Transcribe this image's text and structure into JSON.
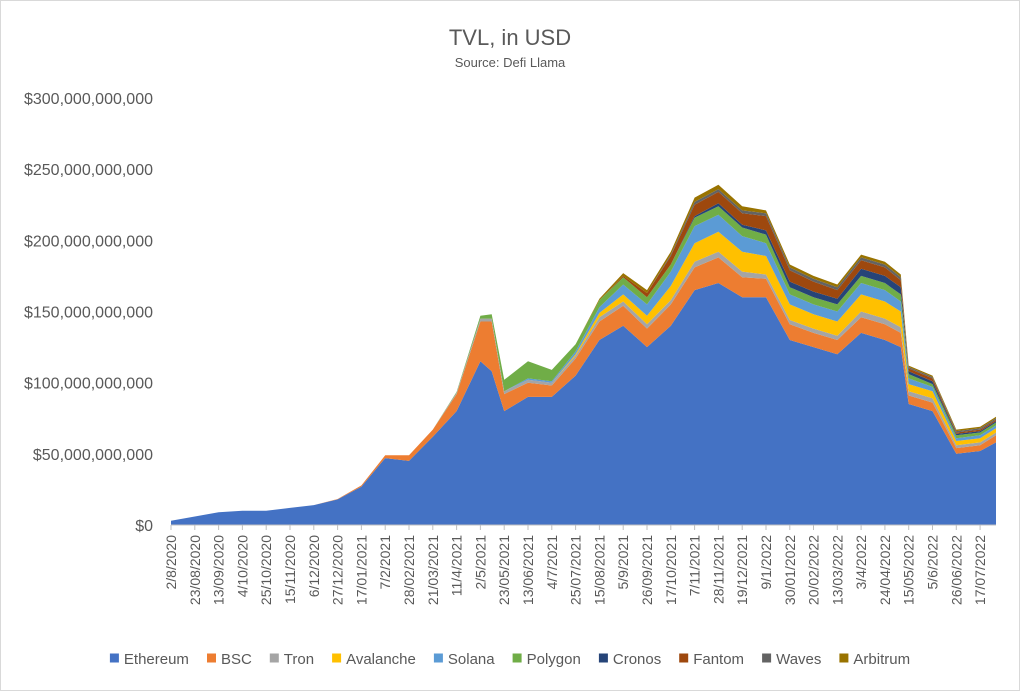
{
  "chart_data": {
    "type": "area",
    "stacked": true,
    "title": "TVL, in USD",
    "subtitle": "Source: Defi Llama",
    "xlabel": "",
    "ylabel": "",
    "ylim": [
      0,
      300000000000
    ],
    "y_ticks": [
      0,
      50000000000,
      100000000000,
      150000000000,
      200000000000,
      250000000000,
      300000000000
    ],
    "y_tick_labels": [
      "$0",
      "$50,000,000,000",
      "$100,000,000,000",
      "$150,000,000,000",
      "$200,000,000,000",
      "$250,000,000,000",
      "$300,000,000,000"
    ],
    "x_tick_labels": [
      "2/8/2020",
      "23/08/2020",
      "13/09/2020",
      "4/10/2020",
      "25/10/2020",
      "15/11/2020",
      "6/12/2020",
      "27/12/2020",
      "17/01/2021",
      "7/2/2021",
      "28/02/2021",
      "21/03/2021",
      "11/4/2021",
      "2/5/2021",
      "23/05/2021",
      "13/06/2021",
      "4/7/2021",
      "25/07/2021",
      "15/08/2021",
      "5/9/2021",
      "26/09/2021",
      "17/10/2021",
      "7/11/2021",
      "28/11/2021",
      "19/12/2021",
      "9/1/2022",
      "30/01/2022",
      "20/02/2022",
      "13/03/2022",
      "3/4/2022",
      "24/04/2022",
      "15/05/2022",
      "5/6/2022",
      "26/06/2022",
      "17/07/2022"
    ],
    "x_points": [
      "2/8/2020",
      "23/08/2020",
      "13/09/2020",
      "4/10/2020",
      "25/10/2020",
      "15/11/2020",
      "6/12/2020",
      "27/12/2020",
      "17/01/2021",
      "7/2/2021",
      "28/02/2021",
      "21/03/2021",
      "11/4/2021",
      "2/5/2021",
      "12/5/2021",
      "23/05/2021",
      "13/06/2021",
      "4/7/2021",
      "25/07/2021",
      "15/08/2021",
      "5/9/2021",
      "26/09/2021",
      "17/10/2021",
      "7/11/2021",
      "28/11/2021",
      "19/12/2021",
      "9/1/2022",
      "30/01/2022",
      "20/02/2022",
      "13/03/2022",
      "3/4/2022",
      "24/04/2022",
      "8/5/2022",
      "15/05/2022",
      "5/6/2022",
      "26/06/2022",
      "17/07/2022",
      "31/07/2022"
    ],
    "series": [
      {
        "name": "Ethereum",
        "color": "#4472c4",
        "values": [
          3,
          6,
          9,
          10,
          10,
          12,
          14,
          18,
          27,
          47,
          45,
          62,
          80,
          115,
          108,
          80,
          90,
          90,
          105,
          130,
          140,
          125,
          140,
          165,
          170,
          160,
          160,
          130,
          125,
          120,
          135,
          130,
          125,
          85,
          80,
          50,
          52,
          58
        ]
      },
      {
        "name": "BSC",
        "color": "#ed7d31",
        "values": [
          0,
          0,
          0,
          0,
          0,
          0,
          0,
          0.3,
          0.8,
          2,
          4,
          5,
          12,
          28,
          35,
          12,
          10,
          8,
          12,
          13,
          14,
          13,
          15,
          16,
          18,
          14,
          13,
          11,
          10,
          10,
          11,
          11,
          10,
          6,
          6,
          4,
          4,
          5
        ]
      },
      {
        "name": "Tron",
        "color": "#a5a5a5",
        "values": [
          0,
          0,
          0,
          0,
          0,
          0,
          0,
          0,
          0,
          0,
          0,
          0,
          1,
          2,
          2,
          2,
          2,
          2,
          2,
          3,
          3,
          3,
          3,
          4,
          4,
          4,
          3,
          3,
          3,
          3,
          4,
          4,
          4,
          3,
          3,
          2,
          2,
          2
        ]
      },
      {
        "name": "Avalanche",
        "color": "#ffc000",
        "values": [
          0,
          0,
          0,
          0,
          0,
          0,
          0,
          0,
          0,
          0,
          0,
          0,
          0,
          0,
          0,
          0,
          0,
          0,
          1,
          3,
          5,
          6,
          10,
          13,
          14,
          14,
          13,
          11,
          10,
          10,
          12,
          12,
          11,
          5,
          5,
          3,
          3,
          3
        ]
      },
      {
        "name": "Solana",
        "color": "#5b9bd5",
        "values": [
          0,
          0,
          0,
          0,
          0,
          0,
          0,
          0,
          0,
          0,
          0,
          0,
          0,
          0,
          0,
          0,
          1,
          1,
          2,
          4,
          7,
          8,
          10,
          12,
          12,
          11,
          9,
          7,
          7,
          7,
          8,
          8,
          7,
          4,
          3,
          2,
          2,
          2
        ]
      },
      {
        "name": "Polygon",
        "color": "#70ad47",
        "values": [
          0,
          0,
          0,
          0,
          0,
          0,
          0,
          0,
          0,
          0,
          0,
          0,
          0.5,
          2,
          3,
          8,
          12,
          8,
          5,
          5,
          5,
          5,
          5,
          6,
          6,
          6,
          6,
          5,
          5,
          5,
          5,
          5,
          5,
          3,
          2,
          2,
          2,
          2
        ]
      },
      {
        "name": "Cronos",
        "color": "#264478",
        "values": [
          0,
          0,
          0,
          0,
          0,
          0,
          0,
          0,
          0,
          0,
          0,
          0,
          0,
          0,
          0,
          0,
          0,
          0,
          0,
          0,
          0,
          0,
          0,
          1,
          2,
          2,
          3,
          4,
          4,
          4,
          5,
          5,
          5,
          2,
          2,
          1,
          1,
          1
        ]
      },
      {
        "name": "Fantom",
        "color": "#9e480e",
        "values": [
          0,
          0,
          0,
          0,
          0,
          0,
          0,
          0,
          0,
          0,
          0,
          0,
          0,
          0,
          0,
          0,
          0,
          0,
          0,
          0,
          1,
          3,
          6,
          8,
          8,
          8,
          10,
          8,
          7,
          6,
          6,
          6,
          5,
          2,
          2,
          1,
          1,
          1
        ]
      },
      {
        "name": "Waves",
        "color": "#636363",
        "values": [
          0,
          0,
          0,
          0,
          0,
          0,
          0,
          0,
          0,
          0,
          0,
          0,
          0,
          0,
          0,
          0,
          0,
          0,
          0,
          0,
          0,
          0,
          1,
          2,
          2,
          2,
          2,
          2,
          2,
          2,
          2,
          2,
          2,
          1,
          1,
          1,
          1,
          1
        ]
      },
      {
        "name": "Arbitrum",
        "color": "#997300",
        "values": [
          0,
          0,
          0,
          0,
          0,
          0,
          0,
          0,
          0,
          0,
          0,
          0,
          0,
          0,
          0,
          0,
          0,
          0,
          0,
          1,
          2,
          2,
          2,
          3,
          3,
          3,
          2,
          2,
          2,
          2,
          2,
          2,
          2,
          1,
          1,
          1,
          1,
          1
        ]
      }
    ],
    "value_units": "USD billions",
    "grid": false,
    "legend_position": "bottom"
  }
}
